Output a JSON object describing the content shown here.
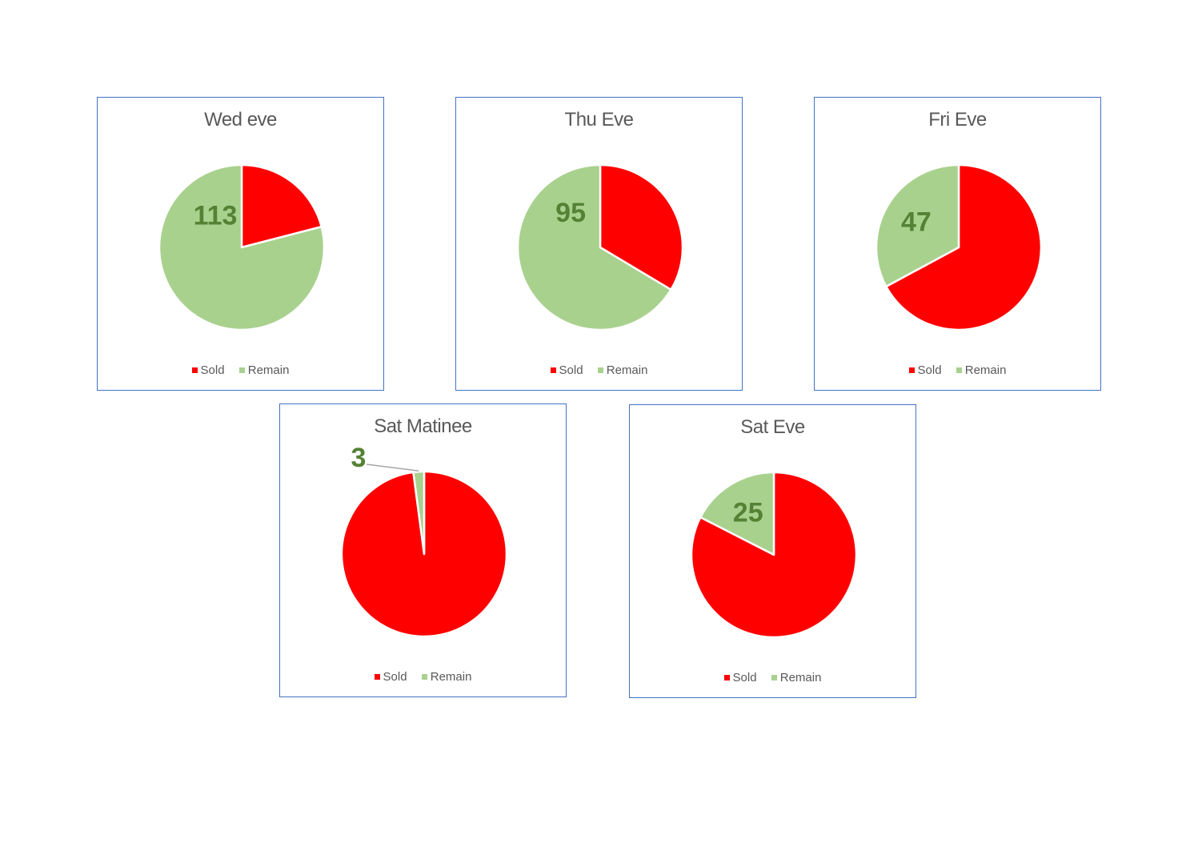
{
  "colors": {
    "sold": "#ff0000",
    "remain": "#a9d18e",
    "label": "#548235",
    "border": "#4472c4"
  },
  "chart_data": [
    {
      "type": "pie",
      "title": "Wed eve",
      "categories": [
        "Sold",
        "Remain"
      ],
      "values": [
        30,
        113
      ],
      "data_labels": [
        "",
        "113"
      ],
      "legend": "bottom"
    },
    {
      "type": "pie",
      "title": "Thu Eve",
      "categories": [
        "Sold",
        "Remain"
      ],
      "values": [
        48,
        95
      ],
      "data_labels": [
        "",
        "95"
      ],
      "legend": "bottom"
    },
    {
      "type": "pie",
      "title": "Fri Eve",
      "categories": [
        "Sold",
        "Remain"
      ],
      "values": [
        96,
        47
      ],
      "data_labels": [
        "",
        "47"
      ],
      "legend": "bottom"
    },
    {
      "type": "pie",
      "title": "Sat Matinee",
      "categories": [
        "Sold",
        "Remain"
      ],
      "values": [
        140,
        3
      ],
      "data_labels": [
        "",
        "3"
      ],
      "legend": "bottom"
    },
    {
      "type": "pie",
      "title": "Sat Eve",
      "categories": [
        "Sold",
        "Remain"
      ],
      "values": [
        118,
        25
      ],
      "data_labels": [
        "",
        "25"
      ],
      "legend": "bottom"
    }
  ]
}
